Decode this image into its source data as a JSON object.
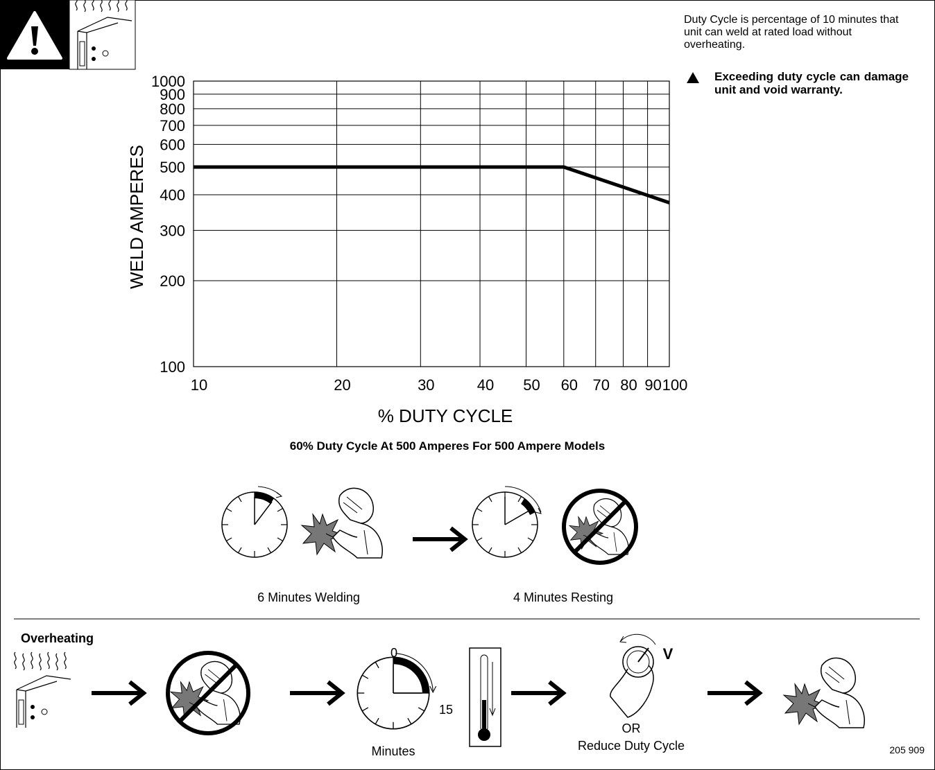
{
  "chart_data": {
    "type": "line",
    "x": [
      10,
      60,
      100
    ],
    "values": [
      500,
      500,
      375
    ],
    "color": "#000000",
    "xscale": "log",
    "yscale": "log",
    "xlim": [
      10,
      100
    ],
    "ylim": [
      100,
      1000
    ],
    "xticks": [
      10,
      20,
      30,
      40,
      50,
      60,
      70,
      80,
      90,
      100
    ],
    "yticks": [
      100,
      200,
      300,
      400,
      500,
      600,
      700,
      800,
      900,
      1000
    ],
    "grid": true,
    "xlabel": "% DUTY CYCLE",
    "ylabel": "WELD AMPERES",
    "caption": "60% Duty Cycle At 500 Amperes For 500 Ampere Models"
  },
  "note": "Duty Cycle is percentage of 10 minutes that unit can weld at rated load without overheating.",
  "warning": "Exceeding duty cycle can damage unit and void warranty.",
  "welding_label": "6 Minutes Welding",
  "resting_label": "4 Minutes Resting",
  "overheating": {
    "title": "Overheating",
    "clock_start": "0",
    "clock_end": "15",
    "clock_label": "Minutes",
    "knob_letter": "V",
    "or": "OR",
    "reduce": "Reduce Duty Cycle"
  },
  "figure_number": "205 909"
}
